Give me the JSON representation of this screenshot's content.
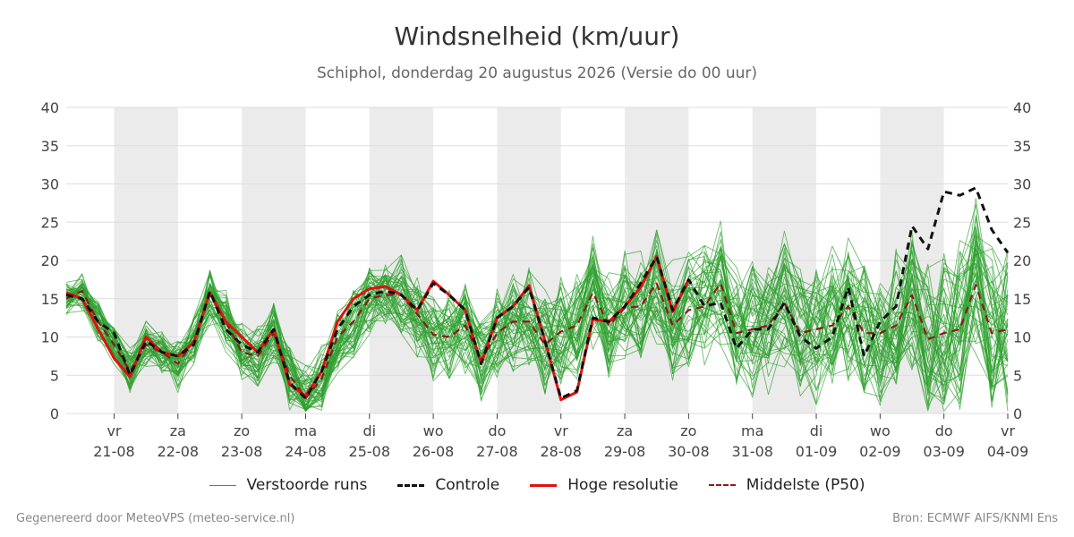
{
  "chart_data": {
    "type": "line",
    "title": "Windsnelheid (km/uur)",
    "subtitle": "Schiphol, donderdag 20 augustus 2026 (Versie do 00 uur)",
    "ylim": [
      0,
      40
    ],
    "yticks": [
      0,
      5,
      10,
      15,
      20,
      25,
      30,
      35,
      40
    ],
    "xlim": [
      -0.75,
      14
    ],
    "grid": true,
    "legend_position": "bottom",
    "x_ticks": [
      {
        "day": "vr",
        "date": "21-08"
      },
      {
        "day": "za",
        "date": "22-08"
      },
      {
        "day": "zo",
        "date": "23-08"
      },
      {
        "day": "ma",
        "date": "24-08"
      },
      {
        "day": "di",
        "date": "25-08"
      },
      {
        "day": "wo",
        "date": "26-08"
      },
      {
        "day": "do",
        "date": "27-08"
      },
      {
        "day": "vr",
        "date": "28-08"
      },
      {
        "day": "za",
        "date": "29-08"
      },
      {
        "day": "zo",
        "date": "30-08"
      },
      {
        "day": "ma",
        "date": "31-08"
      },
      {
        "day": "di",
        "date": "01-09"
      },
      {
        "day": "wo",
        "date": "02-09"
      },
      {
        "day": "do",
        "date": "03-09"
      },
      {
        "day": "vr",
        "date": "04-09"
      }
    ],
    "weekend_bands": [
      [
        0,
        1
      ],
      [
        2,
        3
      ],
      [
        4,
        5
      ],
      [
        6,
        7
      ],
      [
        8,
        9
      ],
      [
        10,
        11
      ],
      [
        12,
        13
      ]
    ],
    "series": [
      {
        "name": "Controle",
        "color": "#111111",
        "dash": "8,6",
        "x": [
          -0.75,
          -0.5,
          -0.25,
          0,
          0.25,
          0.5,
          0.75,
          1,
          1.25,
          1.5,
          1.75,
          2,
          2.25,
          2.5,
          2.75,
          3,
          3.25,
          3.5,
          3.75,
          4,
          4.25,
          4.5,
          4.75,
          5,
          5.25,
          5.5,
          5.75,
          6,
          6.25,
          6.5,
          6.75,
          7,
          7.25,
          7.5,
          7.75,
          8,
          8.25,
          8.5,
          8.75,
          9,
          9.25,
          9.5,
          9.75,
          10,
          10.25,
          10.5,
          10.75,
          11,
          11.25,
          11.5,
          11.75,
          12,
          12.25,
          12.5,
          12.75,
          13,
          13.25,
          13.5,
          13.75,
          14
        ],
        "values": [
          15.5,
          15,
          12,
          10.5,
          5,
          9.5,
          8,
          7.5,
          9,
          16,
          11,
          9,
          8,
          11,
          4,
          2,
          5.5,
          11,
          14,
          15.5,
          16,
          15.5,
          13.5,
          17,
          15.5,
          13.5,
          6.5,
          12.5,
          14,
          16.5,
          9.5,
          2,
          3,
          12.5,
          12,
          14,
          17,
          20.5,
          13.5,
          17.5,
          14,
          14.5,
          8.5,
          11,
          11,
          14.5,
          10,
          8.5,
          10,
          16.5,
          7.5,
          12,
          14,
          24.5,
          21.5,
          29,
          28.5,
          29.5,
          24,
          21
        ]
      },
      {
        "name": "Hoge resolutie",
        "color": "#e01010",
        "dash": "",
        "x": [
          -0.75,
          -0.5,
          -0.25,
          0,
          0.25,
          0.5,
          0.75,
          1,
          1.25,
          1.5,
          1.75,
          2,
          2.25,
          2.5,
          2.75,
          3,
          3.25,
          3.5,
          3.75,
          4,
          4.25,
          4.5,
          4.75,
          5,
          5.25,
          5.5,
          5.75,
          6,
          6.25,
          6.5,
          6.75,
          7,
          7.25,
          7.5,
          7.75,
          8,
          8.25,
          8.5,
          8.75,
          9
        ],
        "values": [
          15.8,
          15,
          11,
          7.2,
          4.8,
          10,
          8,
          7.5,
          9.3,
          15.8,
          12,
          10,
          8,
          11,
          3.8,
          2.3,
          5.5,
          12,
          15,
          16.3,
          16.6,
          15.5,
          13.5,
          17.3,
          15.5,
          13.5,
          6.5,
          12.5,
          14,
          16.7,
          9.5,
          1.8,
          2.8,
          12.3,
          12,
          14,
          16.5,
          20.5,
          13.3,
          17.5
        ]
      },
      {
        "name": "Middelste (P50)",
        "color": "#8b1a1a",
        "dash": "8,6",
        "x": [
          -0.75,
          -0.5,
          -0.25,
          0,
          0.25,
          0.5,
          0.75,
          1,
          1.25,
          1.5,
          1.75,
          2,
          2.25,
          2.5,
          2.75,
          3,
          3.25,
          3.5,
          3.75,
          4,
          4.25,
          4.5,
          4.75,
          5,
          5.25,
          5.5,
          5.75,
          6,
          6.25,
          6.5,
          6.75,
          7,
          7.25,
          7.5,
          7.75,
          8,
          8.25,
          8.5,
          8.75,
          9,
          9.25,
          9.5,
          9.75,
          10,
          10.25,
          10.5,
          10.75,
          11,
          11.25,
          11.5,
          11.75,
          12,
          12.25,
          12.5,
          12.75,
          13,
          13.25,
          13.5,
          13.75,
          14
        ],
        "values": [
          15,
          16,
          12,
          9,
          5.5,
          9,
          8,
          6.5,
          9.5,
          15.5,
          12,
          8,
          7.5,
          10.5,
          5,
          2,
          4.5,
          10,
          12,
          15,
          15.5,
          15.5,
          13,
          10.3,
          10,
          11.5,
          7,
          10.5,
          12,
          12,
          9,
          10.7,
          11.5,
          15.8,
          11.5,
          13.8,
          14,
          17,
          11.5,
          13.5,
          14,
          17,
          10.5,
          11,
          11.5,
          14.5,
          10.5,
          11,
          11.5,
          14,
          10.5,
          10.5,
          11.5,
          15.5,
          9.7,
          10.5,
          11,
          16.8,
          10.5,
          11
        ]
      }
    ],
    "ensemble": {
      "name": "Verstoorde runs",
      "color": "#2ca02c",
      "members": 50
    }
  },
  "legend": [
    {
      "label": "Verstoorde runs",
      "color": "#2ca02c",
      "style": "thin"
    },
    {
      "label": "Controle",
      "color": "#111111",
      "style": "dashed"
    },
    {
      "label": "Hoge resolutie",
      "color": "#e01010",
      "style": "solid"
    },
    {
      "label": "Middelste (P50)",
      "color": "#8b1a1a",
      "style": "dashed"
    }
  ],
  "footer": {
    "left": "Gegenereerd door MeteoVPS (meteo-service.nl)",
    "right": "Bron: ECMWF AIFS/KNMI Ens"
  }
}
